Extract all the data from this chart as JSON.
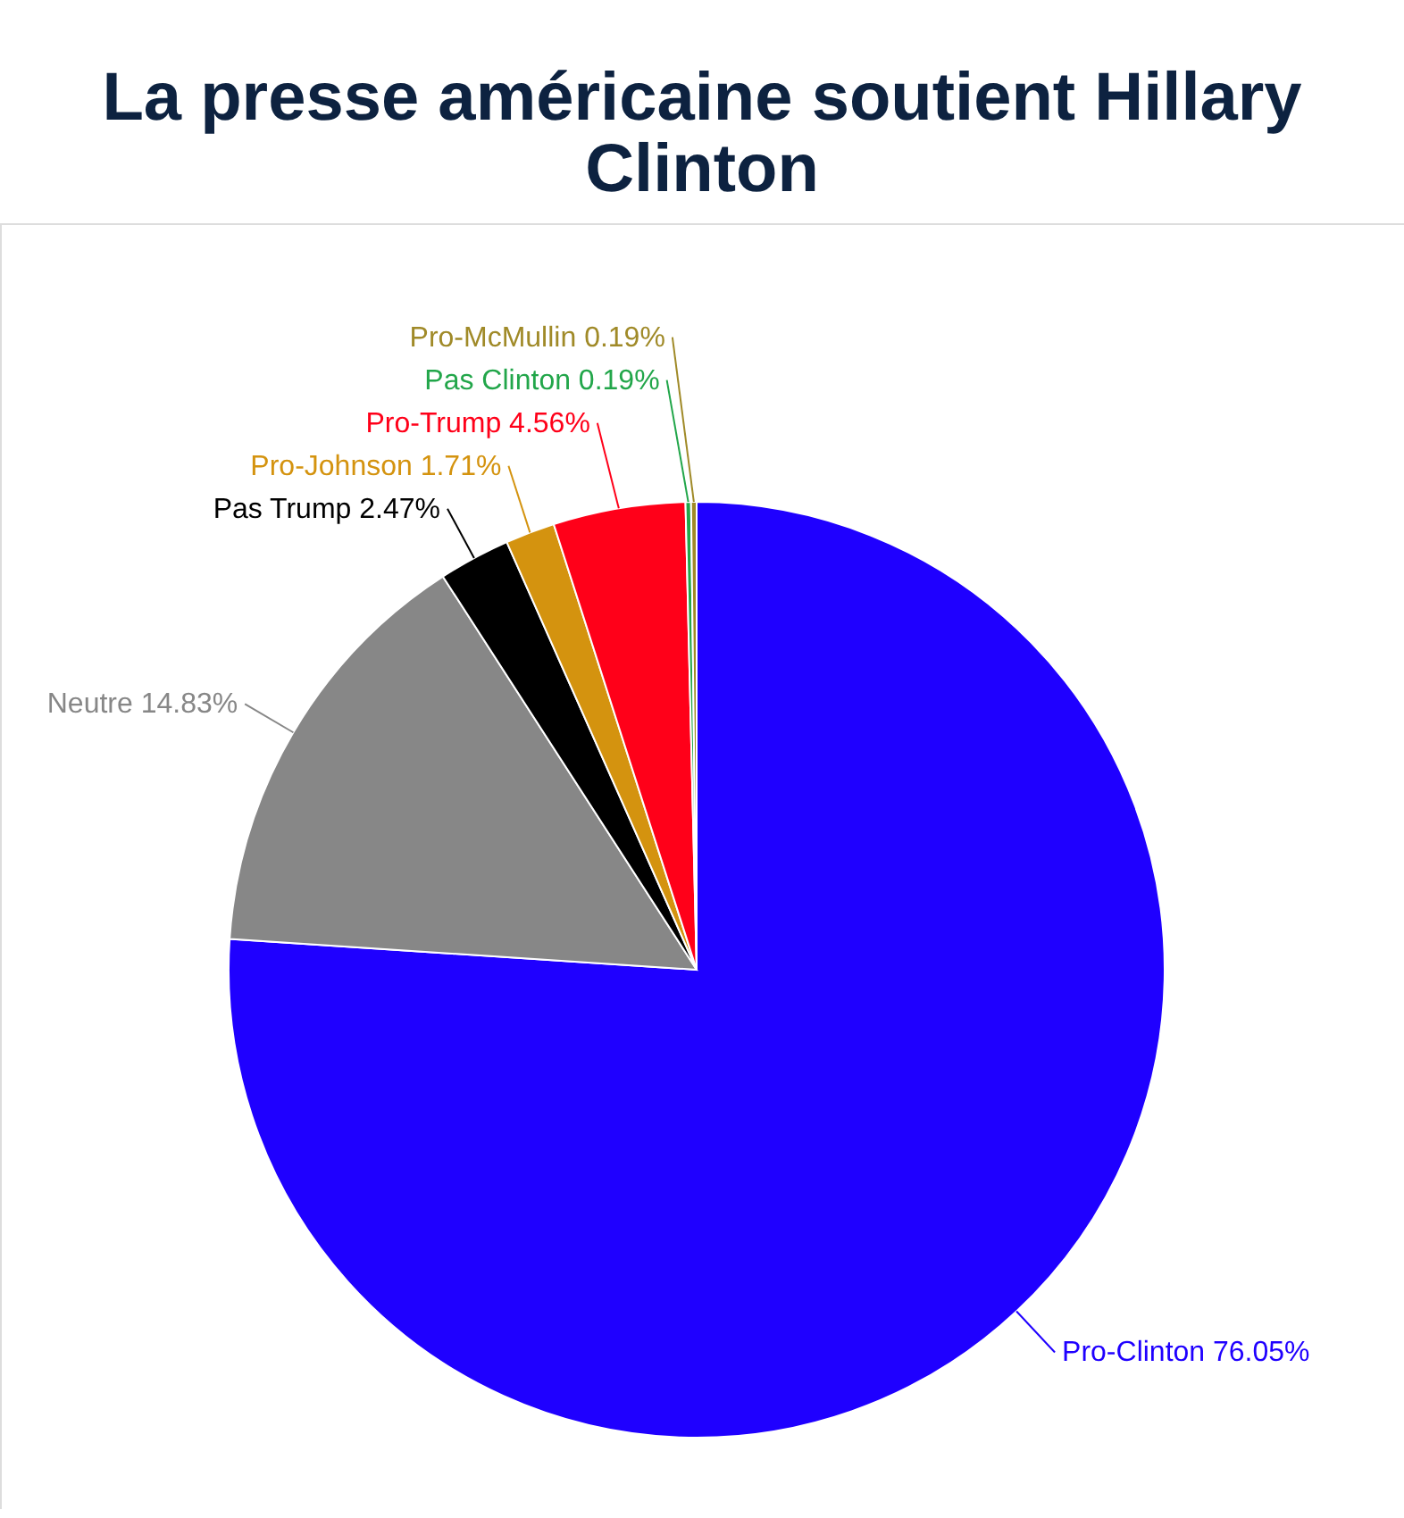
{
  "chart_data": {
    "type": "pie",
    "title": "La presse américaine soutient Hillary Clinton",
    "categories": [
      "Pro-Clinton",
      "Neutre",
      "Pas Trump",
      "Pro-Johnson",
      "Pro-Trump",
      "Pas Clinton",
      "Pro-McMullin"
    ],
    "values": [
      76.05,
      14.83,
      2.47,
      1.71,
      4.56,
      0.19,
      0.19
    ],
    "colors": [
      "#1f00ff",
      "#878787",
      "#000000",
      "#d4930f",
      "#ff0019",
      "#22a64a",
      "#a08a28"
    ],
    "value_labels": [
      "76.05%",
      "14.83%",
      "2.47%",
      "1.71%",
      "4.56%",
      "0.19%",
      "0.19%"
    ]
  }
}
